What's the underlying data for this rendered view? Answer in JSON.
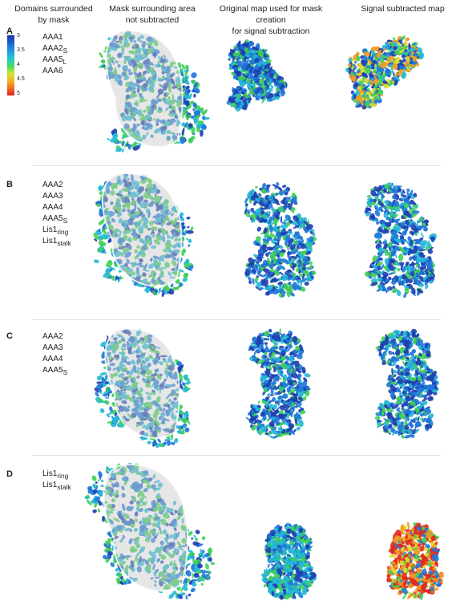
{
  "headers": {
    "col1": [
      "Domains surrounded",
      "by mask"
    ],
    "col2": [
      "Mask surrounding area",
      "not subtracted"
    ],
    "col3": [
      "Original map used for mask creation",
      "for signal subtraction"
    ],
    "col4": [
      "Signal subtracted map"
    ]
  },
  "colorbar": {
    "ticks": [
      "3",
      "3.5",
      "4",
      "4.5",
      "5"
    ]
  },
  "panels": [
    {
      "letter": "A",
      "labels": [
        {
          "base": "AAA1",
          "sub": ""
        },
        {
          "base": "AAA2",
          "sub": "S"
        },
        {
          "base": "AAA5",
          "sub": "L"
        },
        {
          "base": "AAA6",
          "sub": ""
        }
      ]
    },
    {
      "letter": "B",
      "labels": [
        {
          "base": "AAA2",
          "sub": ""
        },
        {
          "base": "AAA3",
          "sub": ""
        },
        {
          "base": "AAA4",
          "sub": ""
        },
        {
          "base": "AAA5",
          "sub": "S"
        },
        {
          "base": "Lis1",
          "sub": "ring"
        },
        {
          "base": "Lis1",
          "sub": "stalk"
        }
      ]
    },
    {
      "letter": "C",
      "labels": [
        {
          "base": "AAA2",
          "sub": ""
        },
        {
          "base": "AAA3",
          "sub": ""
        },
        {
          "base": "AAA4",
          "sub": ""
        },
        {
          "base": "AAA5",
          "sub": "S"
        }
      ]
    },
    {
      "letter": "D",
      "labels": [
        {
          "base": "Lis1",
          "sub": "ring"
        },
        {
          "base": "Lis1",
          "sub": "stalk"
        }
      ]
    }
  ],
  "colors": {
    "blue_dark": "#1c3fb0",
    "blue": "#1f78d8",
    "cyan": "#22b8d6",
    "green": "#3fcf55",
    "yellow": "#e0dd2f",
    "orange": "#f29a25",
    "red": "#e02a20",
    "mask_gray": "#c8c8c8"
  }
}
